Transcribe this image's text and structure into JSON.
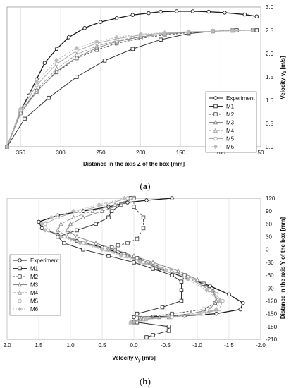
{
  "captions": [
    "(a)",
    "(b)"
  ],
  "chart_data": [
    {
      "type": "line",
      "xlabel": "Distance in the axis Z of the box [mm]",
      "ylabel": "Velocity v_z [m/s]",
      "xlim": [
        367,
        50
      ],
      "ylim": [
        0,
        3.0
      ],
      "xticks": [
        350,
        300,
        250,
        200,
        150,
        100,
        50
      ],
      "yticks": [
        0.0,
        0.5,
        1.0,
        1.5,
        2.0,
        2.5,
        3.0
      ],
      "xtick_labels": [
        "350",
        "300",
        "250",
        "200",
        "150",
        "100",
        "50"
      ],
      "ytick_labels": [
        "0.0",
        "0.5",
        "1.0",
        "1.5",
        "2.0",
        "2.5",
        "3.0"
      ],
      "grid": "vertical",
      "legend": "right",
      "series": [
        {
          "name": "Experiment",
          "color": "#1a1a1a",
          "dash": "",
          "marker": "circle",
          "x": [
            367,
            350,
            340,
            330,
            320,
            305,
            290,
            270,
            250,
            230,
            210,
            190,
            175,
            155,
            135,
            115,
            95,
            70,
            55
          ],
          "y": [
            0.0,
            0.78,
            1.1,
            1.45,
            1.8,
            2.1,
            2.35,
            2.55,
            2.68,
            2.76,
            2.83,
            2.87,
            2.9,
            2.91,
            2.91,
            2.9,
            2.88,
            2.84,
            2.8
          ]
        },
        {
          "name": "M1",
          "color": "#333333",
          "dash": "",
          "marker": "square",
          "x": [
            367,
            345,
            315,
            280,
            245,
            210,
            175,
            140,
            110,
            80,
            55
          ],
          "y": [
            0.0,
            0.6,
            1.05,
            1.5,
            1.85,
            2.1,
            2.3,
            2.43,
            2.48,
            2.5,
            2.5
          ]
        },
        {
          "name": "M2",
          "color": "#555555",
          "dash": "3,2",
          "marker": "square",
          "x": [
            367,
            350,
            330,
            305,
            280,
            255,
            230,
            200,
            170,
            140,
            110,
            85,
            60
          ],
          "y": [
            0.0,
            0.75,
            1.2,
            1.6,
            1.9,
            2.08,
            2.22,
            2.33,
            2.4,
            2.45,
            2.48,
            2.5,
            2.5
          ]
        },
        {
          "name": "M3",
          "color": "#888888",
          "dash": "",
          "marker": "triangle",
          "x": [
            367,
            350,
            330,
            305,
            280,
            255,
            230,
            200,
            170,
            140,
            110,
            85,
            60
          ],
          "y": [
            0.0,
            0.72,
            1.18,
            1.62,
            1.92,
            2.12,
            2.26,
            2.36,
            2.42,
            2.46,
            2.48,
            2.5,
            2.5
          ]
        },
        {
          "name": "M4",
          "color": "#999999",
          "dash": "4,2",
          "marker": "triangle",
          "x": [
            367,
            350,
            330,
            305,
            280,
            255,
            230,
            200,
            170,
            140,
            110,
            85,
            60
          ],
          "y": [
            0.0,
            0.74,
            1.22,
            1.68,
            1.98,
            2.16,
            2.28,
            2.37,
            2.42,
            2.46,
            2.48,
            2.49,
            2.5
          ]
        },
        {
          "name": "M5",
          "color": "#aaaaaa",
          "dash": "",
          "marker": "circle",
          "x": [
            367,
            350,
            330,
            305,
            280,
            255,
            230,
            200,
            170,
            140,
            110,
            85,
            60
          ],
          "y": [
            0.0,
            0.78,
            1.32,
            1.78,
            2.06,
            2.22,
            2.32,
            2.4,
            2.44,
            2.47,
            2.48,
            2.5,
            2.5
          ]
        },
        {
          "name": "M6",
          "color": "#bbbbbb",
          "dash": "2,2",
          "marker": "diamond",
          "x": [
            367,
            350,
            330,
            305,
            280,
            255,
            230,
            200,
            170,
            140,
            110,
            85,
            60
          ],
          "y": [
            0.0,
            0.82,
            1.4,
            1.86,
            2.12,
            2.26,
            2.35,
            2.42,
            2.45,
            2.47,
            2.48,
            2.49,
            2.5
          ]
        }
      ]
    },
    {
      "type": "line",
      "xlabel": "Velocity v_y [m/s]",
      "ylabel": "Distance in the axis Y of the box [mm]",
      "xlim": [
        2.0,
        -2.0
      ],
      "ylim": [
        -210,
        120
      ],
      "xticks": [
        2.0,
        1.5,
        1.0,
        0.5,
        0.0,
        -0.5,
        -1.0,
        -1.5,
        -2.0
      ],
      "yticks": [
        120,
        90,
        60,
        30,
        0,
        -30,
        -60,
        -90,
        -120,
        -150,
        -180,
        -210
      ],
      "xtick_labels": [
        "2.0",
        "1.5",
        "1.0",
        "0.5",
        "0.0",
        "-0.5",
        "-1.0",
        "-1.5",
        "-2.0"
      ],
      "ytick_labels": [
        "120",
        "90",
        "60",
        "30",
        "0",
        "-30",
        "-60",
        "-90",
        "-120",
        "-150",
        "-180",
        "-210"
      ],
      "grid": "vertical",
      "legend": "left",
      "series": [
        {
          "name": "Experiment",
          "color": "#1a1a1a",
          "dash": "",
          "marker": "circle",
          "x": [
            -0.6,
            -0.2,
            0.1,
            0.4,
            0.8,
            1.2,
            1.5,
            1.45,
            1.2,
            0.9,
            0.5,
            0.2,
            -0.1,
            -0.4,
            -0.8,
            -1.2,
            -1.5,
            -1.72,
            -1.68,
            -1.3,
            -0.8,
            -0.3,
            0.0
          ],
          "y": [
            120,
            115,
            110,
            100,
            90,
            80,
            65,
            50,
            35,
            20,
            5,
            -10,
            -25,
            -45,
            -65,
            -85,
            -105,
            -125,
            -140,
            -150,
            -155,
            -157,
            -158
          ]
        },
        {
          "name": "M1",
          "color": "#333333",
          "dash": "",
          "marker": "square",
          "x": [
            0.05,
            0.2,
            0.35,
            0.4,
            0.6,
            0.9,
            1.2,
            1.1,
            0.8,
            0.4,
            0.0,
            -0.3,
            -0.6,
            -0.75,
            -0.75,
            -0.75,
            -0.45,
            -0.05,
            -0.05,
            -0.55,
            -0.55,
            -0.3,
            -0.2
          ],
          "y": [
            120,
            105,
            90,
            75,
            60,
            45,
            30,
            15,
            0,
            -15,
            -30,
            -45,
            -60,
            -75,
            -95,
            -120,
            -135,
            -150,
            -170,
            -180,
            -190,
            -200,
            -205
          ]
        },
        {
          "name": "M2",
          "color": "#555555",
          "dash": "3,2",
          "marker": "square",
          "x": [
            0.0,
            0.0,
            -0.15,
            -0.15,
            -0.05,
            0.1,
            0.25,
            0.35,
            0.3,
            0.15,
            -0.05,
            -0.4,
            -0.8,
            -1.1,
            -1.3,
            -1.28,
            -1.1,
            -0.6,
            -0.1,
            0.0
          ],
          "y": [
            120,
            100,
            75,
            50,
            25,
            15,
            10,
            5,
            0,
            -10,
            -20,
            -40,
            -60,
            -80,
            -105,
            -125,
            -140,
            -150,
            -160,
            -170
          ]
        },
        {
          "name": "M3",
          "color": "#888888",
          "dash": "",
          "marker": "triangle",
          "x": [
            0.0,
            0.2,
            0.5,
            0.8,
            1.0,
            1.05,
            0.9,
            0.6,
            0.3,
            0.0,
            -0.3,
            -0.7,
            -1.0,
            -1.25,
            -1.3,
            -1.2,
            -0.9,
            -0.4,
            -0.1,
            0.0
          ],
          "y": [
            120,
            105,
            90,
            75,
            60,
            45,
            30,
            15,
            0,
            -15,
            -30,
            -50,
            -70,
            -95,
            -120,
            -140,
            -150,
            -158,
            -163,
            -168
          ]
        },
        {
          "name": "M4",
          "color": "#999999",
          "dash": "4,2",
          "marker": "triangle",
          "x": [
            0.0,
            0.3,
            0.65,
            0.95,
            1.15,
            1.2,
            1.05,
            0.75,
            0.4,
            0.1,
            -0.2,
            -0.6,
            -0.95,
            -1.2,
            -1.35,
            -1.3,
            -1.05,
            -0.55,
            -0.15,
            0.05
          ],
          "y": [
            120,
            105,
            90,
            75,
            60,
            45,
            30,
            15,
            0,
            -15,
            -30,
            -50,
            -70,
            -95,
            -120,
            -140,
            -150,
            -158,
            -163,
            -170
          ]
        },
        {
          "name": "M5",
          "color": "#aaaaaa",
          "dash": "",
          "marker": "circle",
          "x": [
            0.1,
            0.45,
            0.85,
            1.2,
            1.4,
            1.35,
            1.1,
            0.8,
            0.45,
            0.15,
            -0.15,
            -0.55,
            -0.9,
            -1.2,
            -1.4,
            -1.35,
            -1.1,
            -0.6,
            -0.2,
            0.05
          ],
          "y": [
            120,
            105,
            90,
            75,
            60,
            45,
            30,
            15,
            0,
            -15,
            -30,
            -50,
            -70,
            -95,
            -120,
            -140,
            -150,
            -158,
            -163,
            -170
          ]
        },
        {
          "name": "M6",
          "color": "#bbbbbb",
          "dash": "2,2",
          "marker": "diamond",
          "x": [
            0.15,
            0.55,
            0.95,
            1.3,
            1.45,
            1.4,
            1.15,
            0.85,
            0.5,
            0.2,
            -0.1,
            -0.5,
            -0.85,
            -1.15,
            -1.35,
            -1.3,
            -1.05,
            -0.55,
            -0.2,
            0.05
          ],
          "y": [
            120,
            105,
            90,
            75,
            60,
            45,
            30,
            15,
            0,
            -15,
            -30,
            -50,
            -70,
            -95,
            -120,
            -140,
            -150,
            -158,
            -163,
            -170
          ]
        }
      ]
    }
  ]
}
